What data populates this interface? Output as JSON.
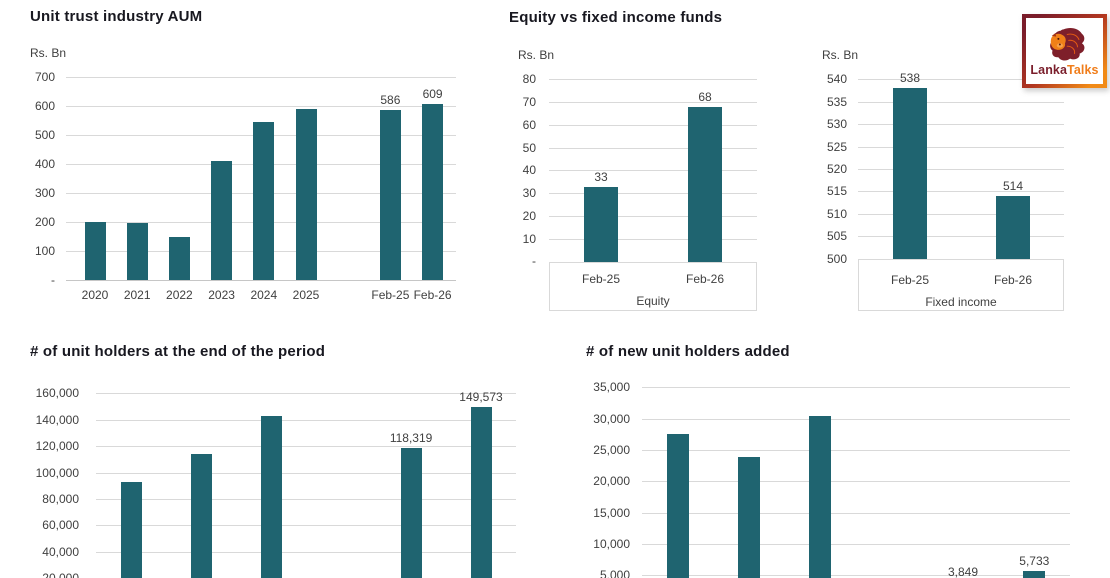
{
  "logo": {
    "text_part1": "Lanka",
    "text_part2": "Talks"
  },
  "colors": {
    "bar": "#1f6470",
    "title_text": "#181820",
    "axis_text": "#404040",
    "gridline": "#d9d9d9",
    "axis_line": "#c6c6c6",
    "logo_maroon": "#7a1e2b",
    "logo_orange": "#f07d1a"
  },
  "chart_data": [
    {
      "type": "bar",
      "title": "Unit trust industry AUM",
      "unit": "Rs. Bn",
      "categories": [
        "2020",
        "2021",
        "2022",
        "2023",
        "2024",
        "2025",
        "Feb-25",
        "Feb-26"
      ],
      "values": [
        200,
        196,
        148,
        410,
        545,
        590,
        586,
        609
      ],
      "data_labels": [
        "",
        "",
        "",
        "",
        "",
        "",
        "586",
        "609"
      ],
      "ylim": [
        0,
        700
      ],
      "yticks": [
        "700",
        "600",
        "500",
        "400",
        "300",
        "200",
        "100",
        "-"
      ],
      "grid": true,
      "legend": "none"
    },
    {
      "type": "bar",
      "title": "Equity vs fixed income funds",
      "unit": "Rs. Bn",
      "group_label": "Equity",
      "categories": [
        "Feb-25",
        "Feb-26"
      ],
      "values": [
        33,
        68
      ],
      "data_labels": [
        "33",
        "68"
      ],
      "ylim": [
        0,
        80
      ],
      "yticks": [
        "80",
        "70",
        "60",
        "50",
        "40",
        "30",
        "20",
        "10",
        "-"
      ],
      "grid": true,
      "legend": "none"
    },
    {
      "type": "bar",
      "title": "",
      "unit": "Rs. Bn",
      "group_label": "Fixed income",
      "categories": [
        "Feb-25",
        "Feb-26"
      ],
      "values": [
        538,
        514
      ],
      "data_labels": [
        "538",
        "514"
      ],
      "ylim": [
        500,
        540
      ],
      "yticks": [
        "540",
        "535",
        "530",
        "525",
        "520",
        "515",
        "510",
        "505",
        "500"
      ],
      "grid": true,
      "legend": "none"
    },
    {
      "type": "bar",
      "title": "# of unit holders at the end of the period",
      "unit": "",
      "categories": [],
      "values": [
        93000,
        114300,
        143200,
        118319,
        149573
      ],
      "data_labels": [
        "",
        "",
        "",
        "118,319",
        "149,573"
      ],
      "ylim": [
        0,
        160000
      ],
      "yticks": [
        "160,000",
        "140,000",
        "120,000",
        "100,000",
        "80,000",
        "60,000",
        "40,000",
        "20,000"
      ],
      "grid": true,
      "legend": "none"
    },
    {
      "type": "bar",
      "title": "# of new unit holders added",
      "unit": "",
      "categories": [],
      "values": [
        27600,
        23800,
        30400,
        3849,
        5733
      ],
      "data_labels": [
        "",
        "",
        "",
        "3,849",
        "5,733"
      ],
      "ylim": [
        0,
        35000
      ],
      "yticks": [
        "35,000",
        "30,000",
        "25,000",
        "20,000",
        "15,000",
        "10,000",
        "5,000"
      ],
      "grid": true,
      "legend": "none"
    }
  ]
}
